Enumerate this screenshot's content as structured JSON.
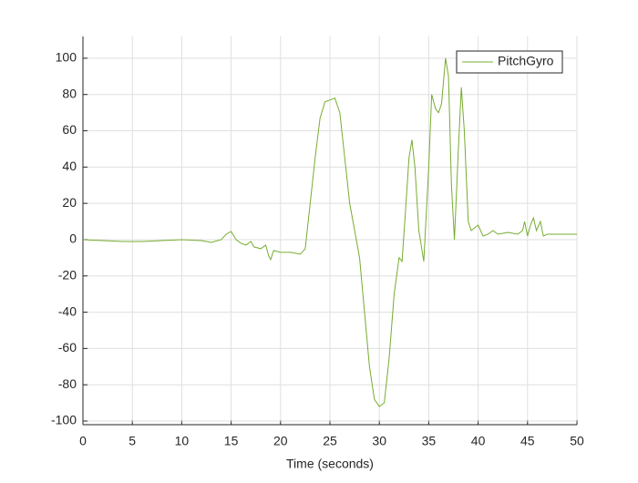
{
  "chart_data": {
    "type": "line",
    "xlabel": "Time (seconds)",
    "x": [
      0,
      2,
      4,
      6,
      8,
      10,
      12,
      13,
      14,
      14.5,
      15,
      15.5,
      16,
      16.5,
      17,
      17.3,
      18,
      18.5,
      18.8,
      19,
      19.3,
      20,
      21,
      22,
      22.5,
      23,
      23.5,
      24,
      24.5,
      25,
      25.5,
      26,
      26.5,
      27,
      27.5,
      28,
      28.5,
      29,
      29.5,
      30,
      30.5,
      31,
      31.5,
      32,
      32.3,
      32.7,
      33,
      33.3,
      33.6,
      34,
      34.5,
      35,
      35.3,
      35.7,
      36,
      36.3,
      36.7,
      37,
      37.3,
      37.6,
      38,
      38.3,
      38.6,
      39,
      39.3,
      40,
      40.5,
      41,
      41.5,
      42,
      43,
      44,
      44.5,
      44.7,
      45,
      45.3,
      45.6,
      45.9,
      46.3,
      46.6,
      47,
      50
    ],
    "series": [
      {
        "name": "PitchGyro",
        "color": "#77ac30",
        "values": [
          0,
          -0.5,
          -1,
          -1,
          -0.5,
          0,
          -0.5,
          -1.5,
          0,
          3,
          4.5,
          0,
          -2,
          -3,
          -1,
          -4,
          -5,
          -3,
          -9,
          -11,
          -6,
          -7,
          -7,
          -8,
          -5,
          20,
          45,
          67,
          76,
          77,
          78,
          70,
          45,
          20,
          5,
          -10,
          -40,
          -70,
          -88,
          -92,
          -90,
          -65,
          -30,
          -10,
          -12,
          20,
          45,
          55,
          40,
          5,
          -12,
          40,
          80,
          72,
          70,
          75,
          100,
          90,
          30,
          0,
          50,
          84,
          60,
          10,
          5,
          8,
          2,
          3,
          5,
          3,
          4,
          3,
          5,
          10,
          2,
          8,
          12,
          5,
          10,
          2,
          3,
          3
        ]
      }
    ],
    "xlim": [
      0,
      50
    ],
    "xticks": [
      0,
      5,
      10,
      15,
      20,
      25,
      30,
      35,
      40,
      45,
      50
    ],
    "ylim": [
      -102,
      112
    ],
    "yticks": [
      -100,
      -80,
      -60,
      -40,
      -20,
      0,
      20,
      40,
      60,
      80,
      100
    ],
    "grid": true,
    "legend_location": "northeast"
  }
}
